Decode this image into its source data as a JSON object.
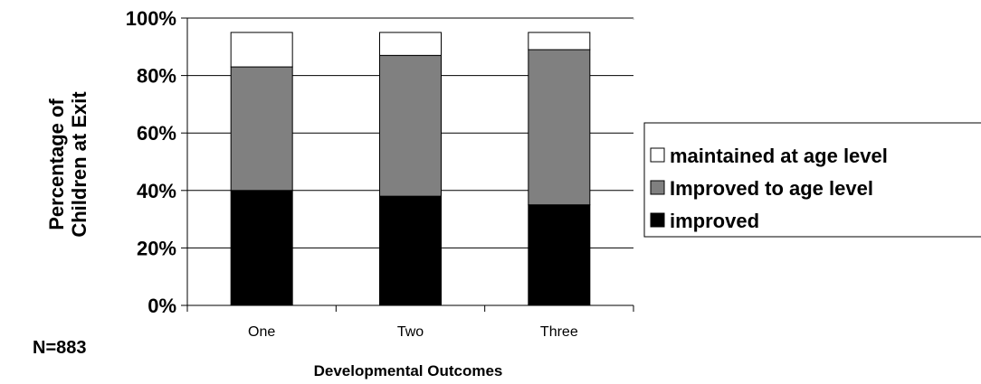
{
  "chart_data": {
    "type": "bar",
    "stacked": true,
    "categories": [
      "One",
      "Two",
      "Three"
    ],
    "series": [
      {
        "name": "improved",
        "values": [
          40,
          38,
          35
        ],
        "color": "#000000"
      },
      {
        "name": "Improved to age level",
        "values": [
          43,
          49,
          54
        ],
        "color": "#808080"
      },
      {
        "name": "maintained at age level",
        "values": [
          12,
          8,
          6
        ],
        "color": "#ffffff"
      }
    ],
    "legend_order": [
      "maintained at age level",
      "Improved to age level",
      "improved"
    ],
    "xlabel": "Developmental Outcomes",
    "ylabel_lines": [
      "Percentage of",
      "Children at Exit"
    ],
    "yticks": [
      "0%",
      "20%",
      "40%",
      "60%",
      "80%",
      "100%"
    ],
    "ylim": [
      0,
      100
    ],
    "grid": true,
    "legend_position": "right",
    "note": "N=883"
  }
}
